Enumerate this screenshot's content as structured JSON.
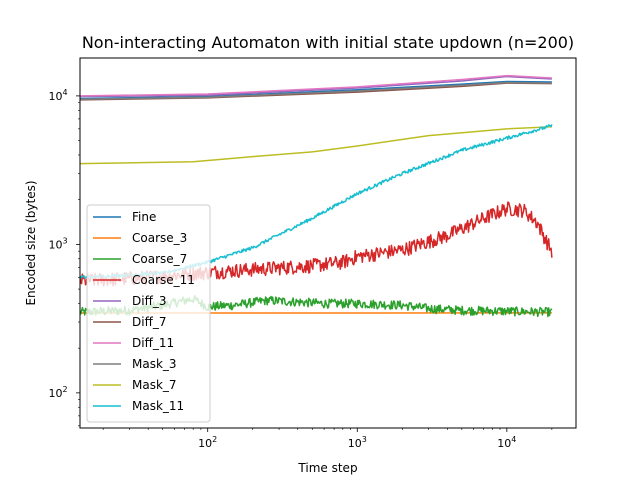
{
  "chart_data": {
    "type": "line",
    "title": "Non-interacting Automaton with initial state updown (n=200)",
    "xlabel": "Time step",
    "ylabel": "Encoded size (bytes)",
    "xscale": "log",
    "yscale": "log",
    "xlim": [
      14,
      29000
    ],
    "ylim": [
      58,
      18000
    ],
    "x_major_ticks": [
      {
        "value": 100,
        "base": "10",
        "exp": "2"
      },
      {
        "value": 1000,
        "base": "10",
        "exp": "3"
      },
      {
        "value": 10000,
        "base": "10",
        "exp": "4"
      }
    ],
    "y_major_ticks": [
      {
        "value": 100,
        "base": "10",
        "exp": "2"
      },
      {
        "value": 1000,
        "base": "10",
        "exp": "3"
      },
      {
        "value": 10000,
        "base": "10",
        "exp": "4"
      }
    ],
    "grid": false,
    "legend_position": "lower-left",
    "series": [
      {
        "name": "Fine",
        "color": "#1f77b4",
        "points": [
          [
            14,
            9600
          ],
          [
            100,
            9900
          ],
          [
            1000,
            11000
          ],
          [
            5000,
            12000
          ],
          [
            10000,
            12500
          ],
          [
            20000,
            12400
          ]
        ]
      },
      {
        "name": "Coarse_3",
        "color": "#ff7f0e",
        "points": [
          [
            14,
            345
          ],
          [
            100,
            345
          ],
          [
            1000,
            345
          ],
          [
            10000,
            346
          ],
          [
            20000,
            346
          ]
        ]
      },
      {
        "name": "Coarse_7",
        "color": "#2ca02c",
        "points": [
          [
            14,
            350
          ],
          [
            30,
            360
          ],
          [
            50,
            390
          ],
          [
            80,
            430
          ],
          [
            100,
            380
          ],
          [
            150,
            390
          ],
          [
            250,
            420
          ],
          [
            400,
            410
          ],
          [
            600,
            400
          ],
          [
            1000,
            400
          ],
          [
            2000,
            390
          ],
          [
            3000,
            370
          ],
          [
            5000,
            360
          ],
          [
            10000,
            355
          ],
          [
            20000,
            350
          ]
        ],
        "noise": 0.07
      },
      {
        "name": "Coarse_11",
        "color": "#d62728",
        "points": [
          [
            14,
            570
          ],
          [
            40,
            600
          ],
          [
            100,
            650
          ],
          [
            200,
            680
          ],
          [
            500,
            720
          ],
          [
            800,
            760
          ],
          [
            1000,
            830
          ],
          [
            2000,
            920
          ],
          [
            4000,
            1150
          ],
          [
            7000,
            1500
          ],
          [
            10000,
            1750
          ],
          [
            13000,
            1700
          ],
          [
            16000,
            1400
          ],
          [
            18000,
            1100
          ],
          [
            20000,
            900
          ]
        ],
        "noise": 0.11
      },
      {
        "name": "Diff_3",
        "color": "#9467bd",
        "points": [
          [
            14,
            9900
          ],
          [
            100,
            10100
          ],
          [
            1000,
            11300
          ],
          [
            5000,
            12600
          ],
          [
            10000,
            13500
          ],
          [
            20000,
            13000
          ]
        ]
      },
      {
        "name": "Diff_7",
        "color": "#8c564b",
        "points": [
          [
            14,
            9400
          ],
          [
            100,
            9700
          ],
          [
            1000,
            10600
          ],
          [
            5000,
            11600
          ],
          [
            10000,
            12200
          ],
          [
            20000,
            12100
          ]
        ]
      },
      {
        "name": "Diff_11",
        "color": "#e377c2",
        "points": [
          [
            14,
            10000
          ],
          [
            100,
            10300
          ],
          [
            1000,
            11500
          ],
          [
            5000,
            12900
          ],
          [
            10000,
            13700
          ],
          [
            20000,
            13200
          ]
        ]
      },
      {
        "name": "Mask_3",
        "color": "#7f7f7f",
        "points": [
          [
            14,
            9500
          ],
          [
            100,
            9800
          ],
          [
            1000,
            10800
          ],
          [
            5000,
            11800
          ],
          [
            10000,
            12300
          ],
          [
            20000,
            12200
          ]
        ]
      },
      {
        "name": "Mask_7",
        "color": "#bcbd22",
        "points": [
          [
            14,
            3500
          ],
          [
            80,
            3600
          ],
          [
            200,
            3900
          ],
          [
            500,
            4200
          ],
          [
            1000,
            4600
          ],
          [
            3000,
            5400
          ],
          [
            10000,
            6000
          ],
          [
            20000,
            6200
          ]
        ]
      },
      {
        "name": "Mask_11",
        "color": "#17becf",
        "points": [
          [
            14,
            600
          ],
          [
            50,
            640
          ],
          [
            100,
            760
          ],
          [
            200,
            950
          ],
          [
            500,
            1500
          ],
          [
            1000,
            2200
          ],
          [
            2000,
            3000
          ],
          [
            5000,
            4300
          ],
          [
            10000,
            5200
          ],
          [
            20000,
            6300
          ]
        ],
        "noise": 0.025
      }
    ]
  }
}
